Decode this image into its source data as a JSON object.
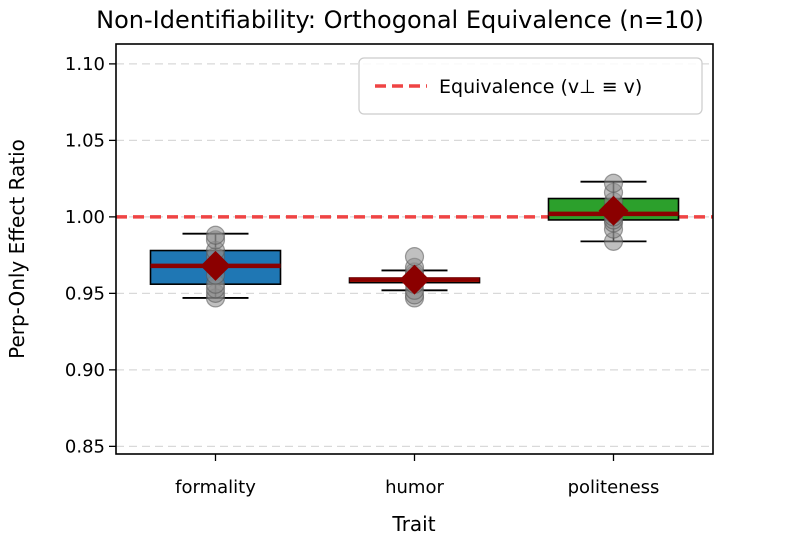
{
  "chart_data": {
    "type": "box",
    "title": "Non-Identifiability: Orthogonal Equivalence (n=10)",
    "xlabel": "Trait",
    "ylabel": "Perp-Only Effect Ratio",
    "ylim": [
      0.845,
      1.113
    ],
    "yticks": [
      0.85,
      0.9,
      0.95,
      1.0,
      1.05,
      1.1
    ],
    "ytick_labels": [
      "0.85",
      "0.90",
      "0.95",
      "1.00",
      "1.05",
      "1.10"
    ],
    "grid": "horizontal dashed",
    "legend": {
      "position": "top-right",
      "entries": [
        "Equivalence (v⊥ ≡ v)"
      ]
    },
    "reference_line": {
      "y": 1.0,
      "color": "#ef4444",
      "label": "Equivalence (v⊥ ≡ v)"
    },
    "categories": [
      "formality",
      "humor",
      "politeness"
    ],
    "boxes": [
      {
        "name": "formality",
        "color": "#1f77b4",
        "whislo": 0.947,
        "q1": 0.956,
        "median": 0.968,
        "q3": 0.978,
        "whishi": 0.989,
        "mean": 0.968,
        "points": [
          0.947,
          0.95,
          0.953,
          0.956,
          0.962,
          0.968,
          0.974,
          0.978,
          0.985,
          0.988
        ]
      },
      {
        "name": "humor",
        "color": "#ff7f0e",
        "whislo": 0.952,
        "q1": 0.957,
        "median": 0.959,
        "q3": 0.96,
        "whishi": 0.965,
        "mean": 0.959,
        "points": [
          0.947,
          0.949,
          0.952,
          0.956,
          0.958,
          0.96,
          0.962,
          0.964,
          0.967,
          0.974
        ]
      },
      {
        "name": "politeness",
        "color": "#2ca02c",
        "whislo": 0.984,
        "q1": 0.998,
        "median": 1.002,
        "q3": 1.012,
        "whishi": 1.023,
        "mean": 1.004,
        "points": [
          0.984,
          0.992,
          0.996,
          0.998,
          1.0,
          1.002,
          1.006,
          1.01,
          1.016,
          1.022
        ]
      }
    ],
    "median_color": "#8b0000",
    "mean_marker_color": "#8b0000"
  }
}
